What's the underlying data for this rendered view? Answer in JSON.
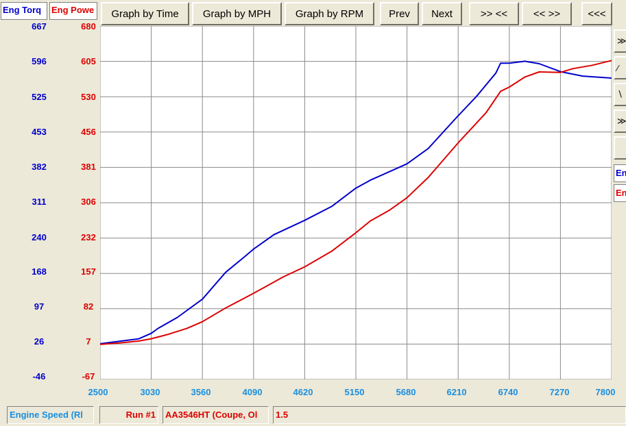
{
  "colors": {
    "torque": "#0000cc",
    "power": "#dd0000",
    "xaxis": "#1a8ee0",
    "grid": "#8a8a8a"
  },
  "legend": {
    "torque_label": "Eng Torq",
    "power_label": "Eng Powe"
  },
  "toolbar": {
    "graph_time": "Graph by Time",
    "graph_mph": "Graph by MPH",
    "graph_rpm": "Graph by RPM",
    "prev": "Prev",
    "next": "Next",
    "zoom_in": ">> <<",
    "zoom_out": "<< >>",
    "scroll_left": "<<<"
  },
  "side_panel": {
    "buttons": [
      "≫",
      "⁄",
      "∖",
      "≫",
      ""
    ],
    "labels": [
      "En",
      "En"
    ]
  },
  "status_bar": {
    "x_channel": "Engine Speed (Rl",
    "run": "Run #1",
    "vehicle": "AA3546HT (Coupe, Ol",
    "value": "1.5"
  },
  "chart_data": {
    "type": "line",
    "x_ticks": [
      2500,
      3030,
      3560,
      4090,
      4620,
      5150,
      5680,
      6210,
      6740,
      7270,
      7800
    ],
    "x_ticklabels": [
      "2500",
      "3030",
      "3560",
      "4090",
      "4620",
      "5150",
      "5680",
      "6210",
      "6740",
      "7270",
      "7800"
    ],
    "xlim": [
      2500,
      7800
    ],
    "y_left_ticklabels": [
      "667",
      "596",
      "525",
      "453",
      "382",
      "311",
      "240",
      "168",
      "97",
      "26",
      "-46"
    ],
    "y_left_lim": [
      -46,
      667
    ],
    "y_right_ticklabels": [
      "680",
      "605",
      "530",
      "456",
      "381",
      "306",
      "232",
      "157",
      "82",
      "7",
      "-67"
    ],
    "y_right_lim": [
      -67,
      680
    ],
    "grid": true,
    "series": [
      {
        "name": "Eng Torq",
        "color": "#0000cc",
        "axis": "left",
        "x": [
          2500,
          2700,
          2900,
          3030,
          3100,
          3300,
          3560,
          3800,
          4000,
          4090,
          4300,
          4620,
          4900,
          5150,
          5300,
          5680,
          5900,
          6210,
          6400,
          6600,
          6650,
          6740,
          6900,
          7050,
          7270,
          7500,
          7800
        ],
        "values": [
          26,
          31,
          36,
          47,
          57,
          79,
          116,
          170,
          202,
          217,
          246,
          275,
          303,
          340,
          356,
          389,
          420,
          486,
          525,
          572,
          592,
          592,
          596,
          591,
          575,
          566,
          562
        ]
      },
      {
        "name": "Eng Powe",
        "color": "#dd0000",
        "axis": "right",
        "x": [
          2500,
          2700,
          2900,
          3030,
          3200,
          3400,
          3560,
          3800,
          4090,
          4400,
          4620,
          4900,
          5150,
          5300,
          5500,
          5680,
          5900,
          6210,
          6500,
          6650,
          6740,
          6900,
          7050,
          7270,
          7400,
          7600,
          7800
        ],
        "values": [
          7,
          10,
          14,
          19,
          28,
          41,
          55,
          84,
          115,
          150,
          171,
          204,
          243,
          268,
          291,
          317,
          360,
          433,
          497,
          542,
          551,
          572,
          583,
          582,
          590,
          597,
          607
        ]
      }
    ]
  }
}
